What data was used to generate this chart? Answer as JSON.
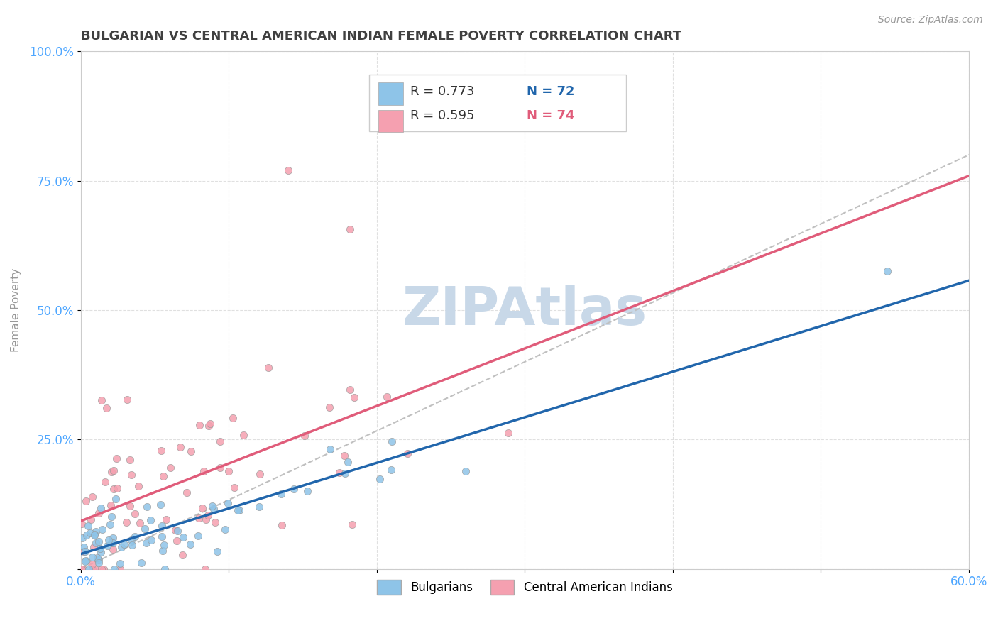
{
  "title": "BULGARIAN VS CENTRAL AMERICAN INDIAN FEMALE POVERTY CORRELATION CHART",
  "source": "Source: ZipAtlas.com",
  "ylabel": "Female Poverty",
  "xlim": [
    0.0,
    0.6
  ],
  "ylim": [
    0.0,
    1.0
  ],
  "xticks": [
    0.0,
    0.1,
    0.2,
    0.3,
    0.4,
    0.5,
    0.6
  ],
  "yticks": [
    0.0,
    0.25,
    0.5,
    0.75,
    1.0
  ],
  "xtick_labels": [
    "0.0%",
    "",
    "",
    "",
    "",
    "",
    "60.0%"
  ],
  "ytick_labels": [
    "",
    "25.0%",
    "50.0%",
    "75.0%",
    "100.0%"
  ],
  "legend1_color": "#8ec4e8",
  "legend2_color": "#f5a0b0",
  "line1_color": "#2166ac",
  "line2_color": "#e05c7a",
  "dashed_line_color": "#c0c0c0",
  "watermark_color": "#c8d8e8",
  "background_color": "#ffffff",
  "title_color": "#404040",
  "tick_label_color": "#4da6ff",
  "grid_color": "#dddddd",
  "scatter_edge_color": "#999999",
  "R1": 0.773,
  "N1": 72,
  "R2": 0.595,
  "N2": 74,
  "seed": 42
}
